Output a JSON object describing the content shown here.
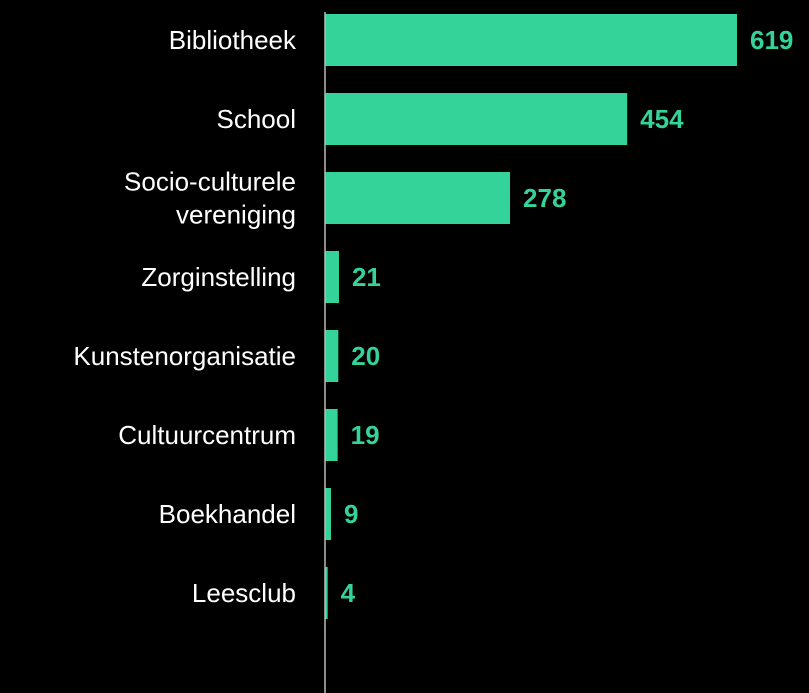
{
  "chart_data": {
    "type": "bar",
    "orientation": "horizontal",
    "categories": [
      [
        "Bibliotheek"
      ],
      [
        "School"
      ],
      [
        "Socio-culturele",
        "vereniging"
      ],
      [
        "Zorginstelling"
      ],
      [
        "Kunstenorganisatie"
      ],
      [
        "Cultuurcentrum"
      ],
      [
        "Boekhandel"
      ],
      [
        "Leesclub"
      ]
    ],
    "values": [
      619,
      454,
      278,
      21,
      20,
      19,
      9,
      4
    ],
    "title": "",
    "xlabel": "",
    "ylabel": "",
    "grid": false,
    "legend": "none",
    "colors": {
      "background": "#000000",
      "bar": "#34D399",
      "value_text": "#34D399",
      "category_text": "#FFFFFF",
      "axis": "#BBBBBB"
    }
  }
}
